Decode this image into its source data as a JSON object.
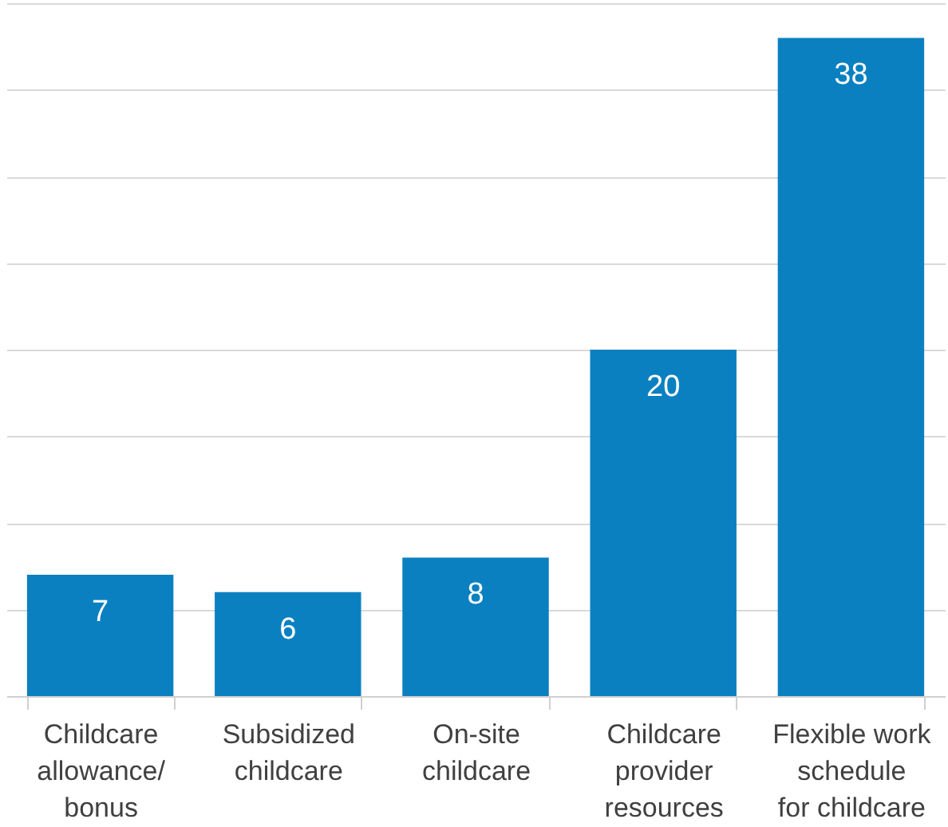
{
  "chart_data": {
    "type": "bar",
    "categories": [
      "Childcare\nallowance/\nbonus",
      "Subsidized\nchildcare",
      "On-site\nchildcare",
      "Childcare\nprovider\nresources",
      "Flexible work\nschedule\nfor childcare"
    ],
    "values": [
      7,
      6,
      8,
      20,
      38
    ],
    "color": "#0b80c0",
    "ylim": [
      0,
      40
    ],
    "yticks": [
      {
        "value": 0,
        "label": null
      },
      {
        "value": 5,
        "label": null
      },
      {
        "value": 10,
        "label": null
      },
      {
        "value": 15,
        "label": null
      },
      {
        "value": 20,
        "label": null
      },
      {
        "value": 25,
        "label": null
      },
      {
        "value": 30,
        "label": null
      },
      {
        "value": 35,
        "label": null
      },
      {
        "value": 40,
        "label": null
      }
    ],
    "grid": "y",
    "tick_labels": "x",
    "data_labels": true
  }
}
